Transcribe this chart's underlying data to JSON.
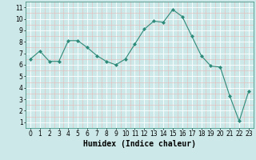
{
  "x": [
    0,
    1,
    2,
    3,
    4,
    5,
    6,
    7,
    8,
    9,
    10,
    11,
    12,
    13,
    14,
    15,
    16,
    17,
    18,
    19,
    20,
    21,
    22,
    23
  ],
  "y": [
    6.5,
    7.2,
    6.3,
    6.3,
    8.1,
    8.1,
    7.5,
    6.8,
    6.3,
    6.0,
    6.5,
    7.8,
    9.1,
    9.8,
    9.7,
    10.8,
    10.2,
    8.5,
    6.8,
    5.9,
    5.8,
    3.3,
    1.1,
    3.7
  ],
  "line_color": "#2e8b7a",
  "marker": "D",
  "marker_size": 2,
  "bg_color": "#cde8e8",
  "grid_color_major": "#ffffff",
  "grid_color_minor": "#e8b8b8",
  "xlabel": "Humidex (Indice chaleur)",
  "xlabel_fontsize": 7,
  "xlim": [
    -0.5,
    23.5
  ],
  "ylim": [
    0.5,
    11.5
  ],
  "yticks": [
    1,
    2,
    3,
    4,
    5,
    6,
    7,
    8,
    9,
    10,
    11
  ],
  "xticks": [
    0,
    1,
    2,
    3,
    4,
    5,
    6,
    7,
    8,
    9,
    10,
    11,
    12,
    13,
    14,
    15,
    16,
    17,
    18,
    19,
    20,
    21,
    22,
    23
  ],
  "tick_fontsize": 5.5,
  "line_width": 0.8
}
